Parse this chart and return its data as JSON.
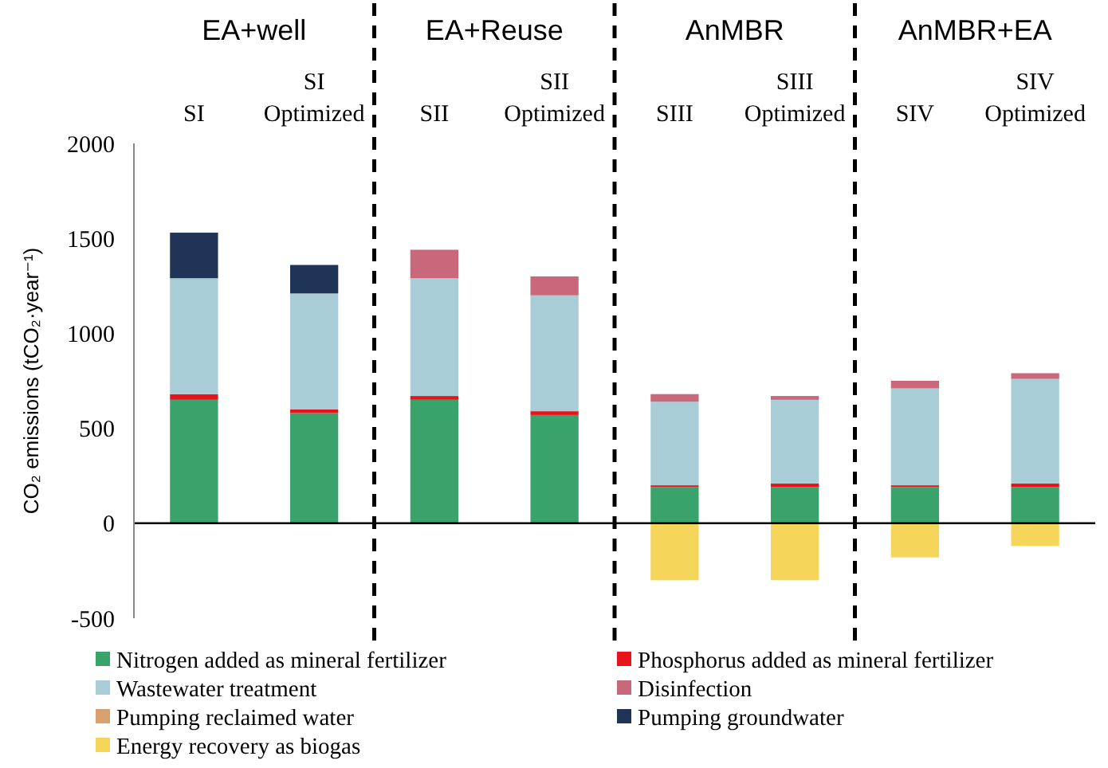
{
  "chart_data": {
    "type": "bar",
    "stacked": true,
    "ylabel": "CO₂ emissions (tCO₂·year⁻¹)",
    "categories": [
      "SI",
      "SI Optimized",
      "SII",
      "SII Optimized",
      "SIII",
      "SIII Optimized",
      "SIV",
      "SIV Optimized"
    ],
    "series": [
      {
        "name": "Nitrogen added as mineral fertilizer",
        "color": "#3aa36b",
        "values": [
          650,
          580,
          650,
          570,
          190,
          190,
          190,
          190
        ]
      },
      {
        "name": "Phosphorus added as mineral fertilizer",
        "color": "#e8141c",
        "values": [
          30,
          20,
          20,
          20,
          10,
          20,
          10,
          20
        ]
      },
      {
        "name": "Wastewater treatment",
        "color": "#a9cdd6",
        "values": [
          610,
          610,
          620,
          610,
          440,
          440,
          510,
          550
        ]
      },
      {
        "name": "Disinfection",
        "color": "#c8687a",
        "values": [
          null,
          null,
          150,
          100,
          40,
          20,
          40,
          30
        ]
      },
      {
        "name": "Pumping reclaimed water",
        "color": "#d9a070",
        "values": [
          null,
          null,
          null,
          null,
          null,
          null,
          null,
          null
        ]
      },
      {
        "name": "Pumping groundwater",
        "color": "#1f3457",
        "values": [
          240,
          150,
          null,
          null,
          null,
          null,
          null,
          null
        ]
      },
      {
        "name": "Energy recovery as biogas",
        "color": "#f5d55a",
        "values": [
          null,
          null,
          null,
          null,
          -300,
          -300,
          -180,
          -120
        ]
      }
    ],
    "ylim": [
      -500,
      2000
    ],
    "yticks": [
      -500,
      0,
      500,
      1000,
      1500,
      2000
    ],
    "grid": false,
    "legend": "bottom",
    "annotations": [
      "EA+well",
      "EA+Reuse",
      "AnMBR",
      "AnMBR+EA"
    ]
  }
}
